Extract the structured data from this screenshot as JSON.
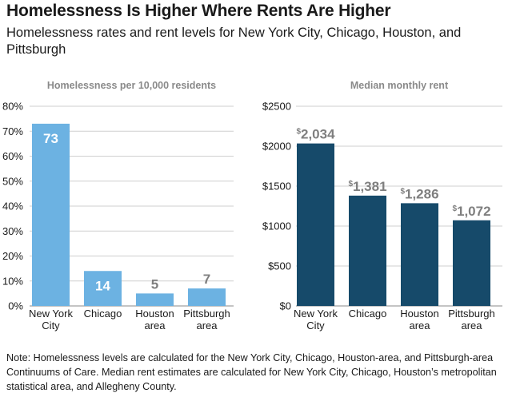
{
  "title": "Homelessness Is Higher Where Rents Are Higher",
  "subtitle": "Homelessness rates and rent levels for New York City, Chicago, Houston, and Pittsburgh",
  "note": "Note: Homelessness levels are calculated for the New York City, Chicago, Houston-area, and Pittsburgh-area Continuums of Care. Median rent estimates are calculated for New York City, Chicago, Houston’s metropolitan statistical area, and Allegheny County.",
  "chart_data": [
    {
      "type": "bar",
      "title": "Homelessness per 10,000 residents",
      "categories": [
        [
          "New York",
          "City"
        ],
        [
          "Chicago"
        ],
        [
          "Houston",
          "area"
        ],
        [
          "Pittsburgh",
          "area"
        ]
      ],
      "values": [
        73,
        14,
        5,
        7
      ],
      "data_labels": [
        "73",
        "14",
        "5",
        "7"
      ],
      "ylim": [
        0,
        80
      ],
      "yticks": [
        0,
        10,
        20,
        30,
        40,
        50,
        60,
        70,
        80
      ],
      "ytick_labels": [
        "0%",
        "10%",
        "20%",
        "30%",
        "40%",
        "50%",
        "60%",
        "70%",
        "80%"
      ],
      "color": "#6cb2e2",
      "grid": true
    },
    {
      "type": "bar",
      "title": "Median monthly rent",
      "categories": [
        [
          "New York",
          "City"
        ],
        [
          "Chicago"
        ],
        [
          "Houston",
          "area"
        ],
        [
          "Pittsburgh",
          "area"
        ]
      ],
      "values": [
        2034,
        1381,
        1286,
        1072
      ],
      "data_labels": [
        "2,034",
        "1,381",
        "1,286",
        "1,072"
      ],
      "data_label_prefix": "$",
      "ylim": [
        0,
        2500
      ],
      "yticks": [
        0,
        500,
        1000,
        1500,
        2000,
        2500
      ],
      "ytick_labels": [
        "$0",
        "$500",
        "$1000",
        "$1500",
        "$2000",
        "$2500"
      ],
      "color": "#164a6a",
      "grid": true
    }
  ]
}
